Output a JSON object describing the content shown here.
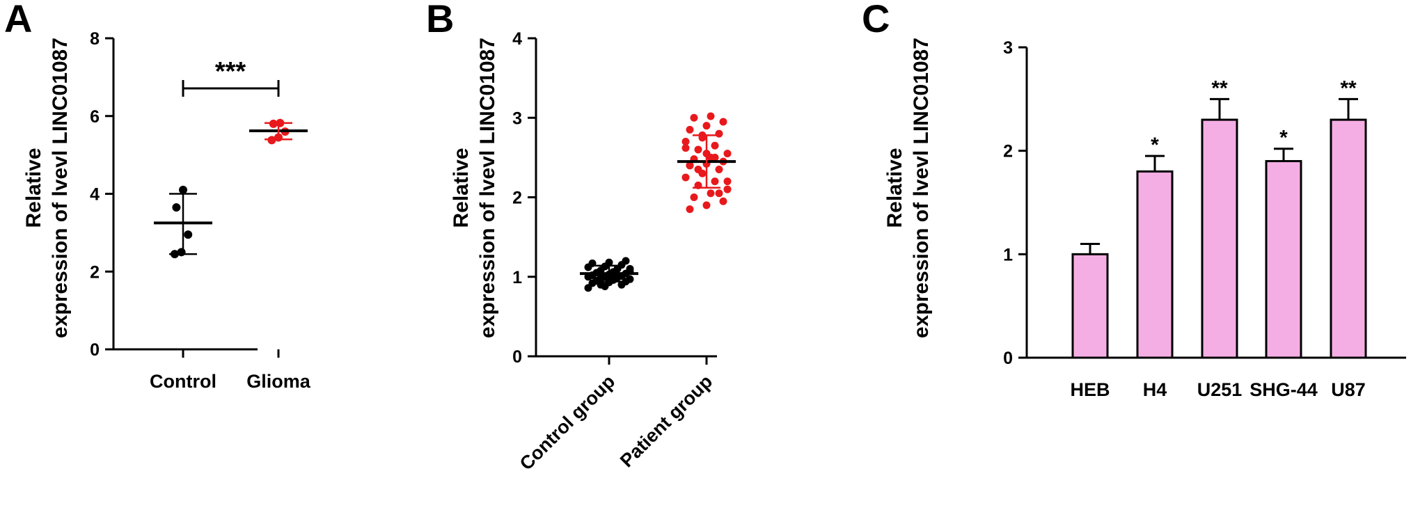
{
  "chart_data": [
    {
      "type": "scatter",
      "panel": "A",
      "ylabel": [
        "Relative",
        "expression of lvevl LINC01087"
      ],
      "ylim": [
        0,
        8
      ],
      "yticks": [
        "0",
        "2",
        "4",
        "6",
        "8"
      ],
      "categories": [
        "Control",
        "Glioma"
      ],
      "series": [
        {
          "color": "#000000",
          "values": [
            2.45,
            2.5,
            2.95,
            3.65,
            4.1
          ],
          "mean": 3.25,
          "sd_low": 2.45,
          "sd_high": 4.0
        },
        {
          "color": "#e8191c",
          "values": [
            5.38,
            5.45,
            5.6,
            5.8,
            5.82
          ],
          "mean": 5.62,
          "sd_low": 5.4,
          "sd_high": 5.82
        }
      ],
      "significance": [
        {
          "label": "***",
          "from": 0,
          "to": 1
        }
      ]
    },
    {
      "type": "scatter",
      "panel": "B",
      "ylabel": [
        "Relative",
        "expression of lvevl LINC01087"
      ],
      "ylim": [
        0,
        4
      ],
      "yticks": [
        "0",
        "1",
        "2",
        "3",
        "4"
      ],
      "categories": [
        "Control group",
        "Patient group"
      ],
      "series": [
        {
          "color": "#000000",
          "values": [
            0.86,
            0.88,
            0.9,
            0.92,
            0.93,
            0.94,
            0.95,
            0.96,
            0.97,
            0.98,
            0.99,
            1.0,
            1.0,
            1.01,
            1.02,
            1.03,
            1.04,
            1.05,
            1.06,
            1.07,
            1.08,
            1.1,
            1.12,
            1.13,
            1.15,
            1.17,
            1.18,
            1.2,
            0.95,
            1.05,
            1.1,
            0.9
          ],
          "mean": 1.04,
          "sd_low": 0.94,
          "sd_high": 1.14
        },
        {
          "color": "#e8191c",
          "values": [
            1.85,
            1.9,
            1.95,
            2.0,
            2.05,
            2.1,
            2.15,
            2.2,
            2.25,
            2.3,
            2.35,
            2.4,
            2.42,
            2.45,
            2.48,
            2.5,
            2.55,
            2.6,
            2.65,
            2.7,
            2.75,
            2.8,
            2.85,
            2.9,
            2.95,
            3.0,
            3.02,
            2.2,
            2.35,
            2.5,
            2.62,
            2.78,
            2.05,
            2.4,
            2.55
          ],
          "mean": 2.45,
          "sd_low": 2.12,
          "sd_high": 2.78
        }
      ]
    },
    {
      "type": "bar",
      "panel": "C",
      "ylabel": [
        "Relative",
        "expression of lvevl LINC01087"
      ],
      "ylim": [
        0,
        3
      ],
      "yticks": [
        "0",
        "1",
        "2",
        "3"
      ],
      "categories": [
        "HEB",
        "H4",
        "U251",
        "SHG-44",
        "U87"
      ],
      "values": [
        1.0,
        1.8,
        2.3,
        1.9,
        2.3
      ],
      "errors": [
        0.1,
        0.15,
        0.2,
        0.12,
        0.2
      ],
      "significance": [
        "",
        "*",
        "**",
        "*",
        "**"
      ],
      "bar_color": "#f5aee4"
    }
  ]
}
